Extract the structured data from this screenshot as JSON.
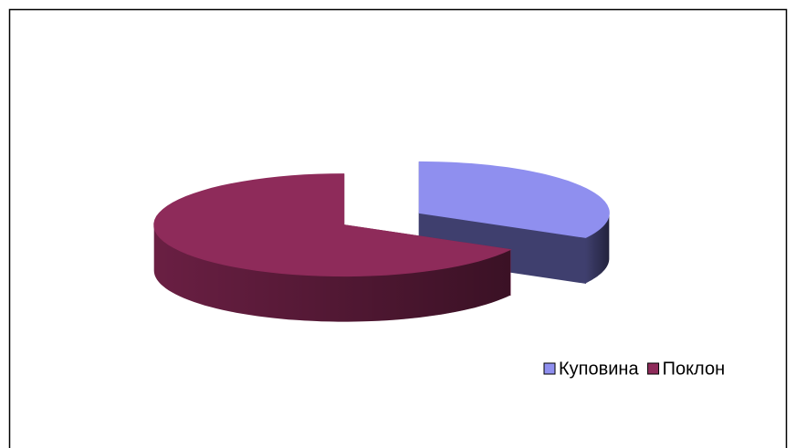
{
  "chart_data": {
    "type": "pie3d",
    "categories": [
      "Куповина",
      "Поклон"
    ],
    "values": [
      33,
      67
    ],
    "colors": [
      "#8f8fef",
      "#8e2b5a"
    ],
    "side_colors": [
      "#3f3f6e",
      "#6a1f43"
    ],
    "legend": "bottom-right"
  }
}
